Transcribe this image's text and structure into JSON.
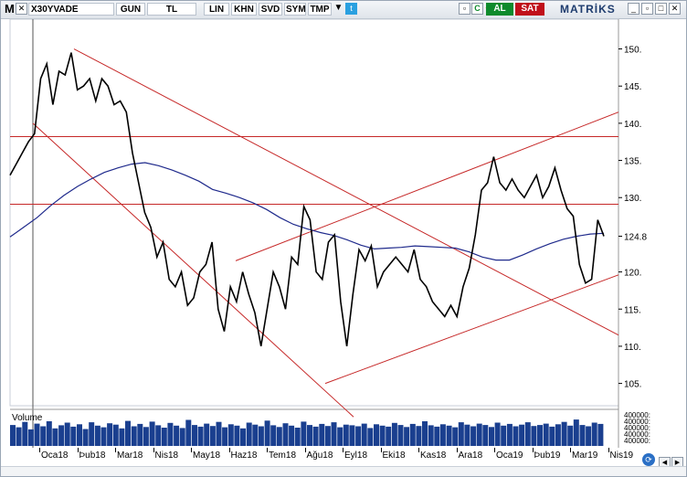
{
  "toolbar": {
    "menu_letter": "M",
    "symbol": "X30YVADE",
    "period": "GUN",
    "currency": "TL",
    "scale": "LIN",
    "buttons": [
      "KHN",
      "SVD",
      "SYM",
      "TMP"
    ],
    "buy_label": "AL",
    "sell_label": "SAT",
    "brand": "MATRİKS"
  },
  "colors": {
    "price_line": "#000000",
    "moving_average": "#1f2a8c",
    "trendlines": "#c62828",
    "volume_bars": "#1a3f8f",
    "buy": "#0e8a2c",
    "sell": "#c0101a"
  },
  "volume": {
    "label": "Volume",
    "axis_labels": "400000:\n400000:\n400000:\n400000:\n400000:"
  },
  "chart_data": {
    "type": "line",
    "title": "",
    "xlabel": "",
    "ylabel": "",
    "y_ticks": [
      "150.",
      "145.",
      "140.",
      "135.",
      "130.",
      "124.8",
      "120.",
      "115.",
      "110.",
      "105."
    ],
    "ylim": [
      102,
      154
    ],
    "x_ticks": [
      "Oca18",
      "Þub18",
      "Mar18",
      "Nis18",
      "May18",
      "Haz18",
      "Tem18",
      "Ağu18",
      "Eyl18",
      "Eki18",
      "Kas18",
      "Ara18",
      "Oca19",
      "Þub19",
      "Mar19",
      "Nis19"
    ],
    "last_value_label": "124.8",
    "series": [
      {
        "values": [
          133,
          134.5,
          136,
          137.5,
          138.6,
          146,
          148,
          142.5,
          147,
          146.5,
          149.5,
          144.5,
          145,
          146,
          143,
          146,
          145,
          142.5,
          143,
          141.5,
          136,
          132,
          128,
          126,
          122,
          124,
          119,
          118,
          120,
          115.5,
          116.5,
          120,
          121,
          124,
          115,
          112,
          118,
          116,
          120,
          117,
          114.5,
          110,
          115,
          120,
          118,
          115,
          122,
          121,
          128.8,
          127,
          120,
          119,
          124,
          125,
          116,
          110,
          117,
          123,
          121.5,
          123.5,
          118,
          120,
          121,
          122,
          121,
          120,
          123,
          119,
          118,
          116,
          115,
          114,
          115.5,
          114,
          118,
          120.5,
          125,
          131,
          132,
          135.5,
          132,
          131,
          132.5,
          131,
          130,
          131.5,
          133,
          130,
          131.5,
          134,
          131,
          128.5,
          127.5,
          121,
          118.5,
          119,
          127,
          124.8
        ]
      },
      {
        "name": "",
        "values": [
          124.7,
          126,
          127.3,
          128.9,
          130.3,
          131.5,
          132.5,
          133.4,
          134,
          134.5,
          134.7,
          134.3,
          133.7,
          133,
          132.2,
          131.1,
          130.6,
          130,
          129.3,
          128.4,
          127.3,
          126.4,
          125.8,
          125.3,
          124.9,
          124.3,
          123.6,
          123.1,
          123.2,
          123.3,
          123.5,
          123.4,
          123.3,
          123.2,
          122.7,
          122,
          121.6,
          121.6,
          122.3,
          123.1,
          123.8,
          124.4,
          124.8,
          125.1,
          125.2
        ]
      }
    ],
    "volume_values": [
      0.62,
      0.55,
      0.71,
      0.49,
      0.66,
      0.58,
      0.73,
      0.52,
      0.61,
      0.69,
      0.57,
      0.64,
      0.5,
      0.7,
      0.6,
      0.55,
      0.67,
      0.63,
      0.52,
      0.74,
      0.58,
      0.65,
      0.56,
      0.72,
      0.61,
      0.54,
      0.68,
      0.6,
      0.53,
      0.77,
      0.62,
      0.57,
      0.66,
      0.59,
      0.71,
      0.55,
      0.64,
      0.6,
      0.52,
      0.69,
      0.63,
      0.58,
      0.75,
      0.61,
      0.56,
      0.67,
      0.6,
      0.54,
      0.72,
      0.62,
      0.57,
      0.65,
      0.59,
      0.7,
      0.55,
      0.63,
      0.61,
      0.58,
      0.66,
      0.53,
      0.64,
      0.6,
      0.57,
      0.68,
      0.62,
      0.56,
      0.65,
      0.59,
      0.73,
      0.61,
      0.57,
      0.64,
      0.6,
      0.55,
      0.7,
      0.63,
      0.58,
      0.66,
      0.62,
      0.56,
      0.69,
      0.6,
      0.65,
      0.58,
      0.63,
      0.7,
      0.59,
      0.62,
      0.66,
      0.57,
      0.64,
      0.71,
      0.6,
      0.78,
      0.62,
      0.58,
      0.69,
      0.65
    ]
  }
}
